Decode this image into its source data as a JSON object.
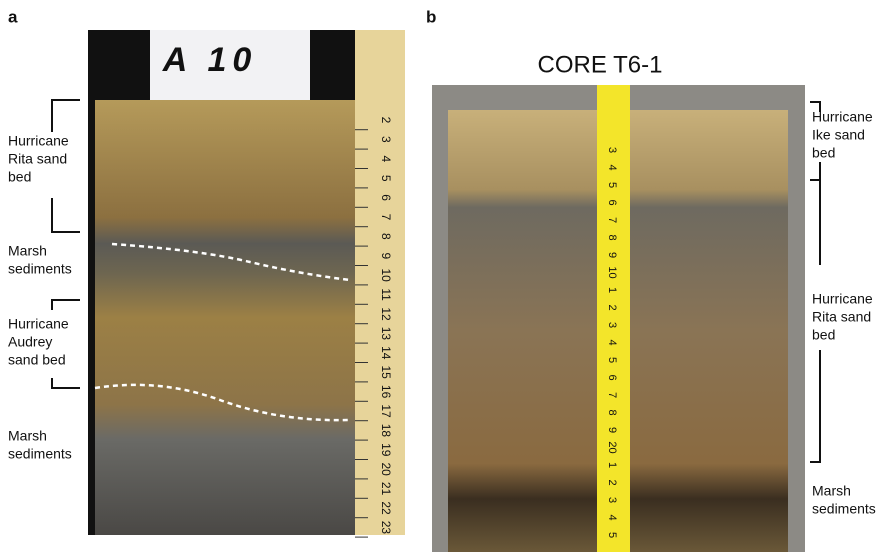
{
  "panel_a": {
    "letter": "a",
    "sign": "A 10",
    "labels": [
      [
        "Hurricane",
        "Rita sand",
        "bed"
      ],
      [
        "Marsh",
        "sediments"
      ],
      [
        "Hurricane",
        "Audrey",
        "sand bed"
      ],
      [
        "Marsh",
        "sediments"
      ]
    ],
    "ruler": [
      "2",
      "3",
      "4",
      "5",
      "6",
      "7",
      "8",
      "9",
      "10",
      "11",
      "12",
      "13",
      "14",
      "15",
      "16",
      "17",
      "18",
      "19",
      "20",
      "21",
      "22",
      "23"
    ]
  },
  "panel_b": {
    "letter": "b",
    "title": "CORE T6-1",
    "labels": [
      [
        "Hurricane",
        "Ike sand",
        "bed"
      ],
      [
        "Hurricane",
        "Rita sand",
        "bed"
      ],
      [
        "Marsh",
        "sediments"
      ]
    ],
    "tape": [
      "3",
      "4",
      "5",
      "6",
      "7",
      "8",
      "9",
      "10",
      "1",
      "2",
      "3",
      "4",
      "5",
      "6",
      "7",
      "8",
      "9",
      "20",
      "1",
      "2",
      "3",
      "4",
      "5"
    ]
  }
}
